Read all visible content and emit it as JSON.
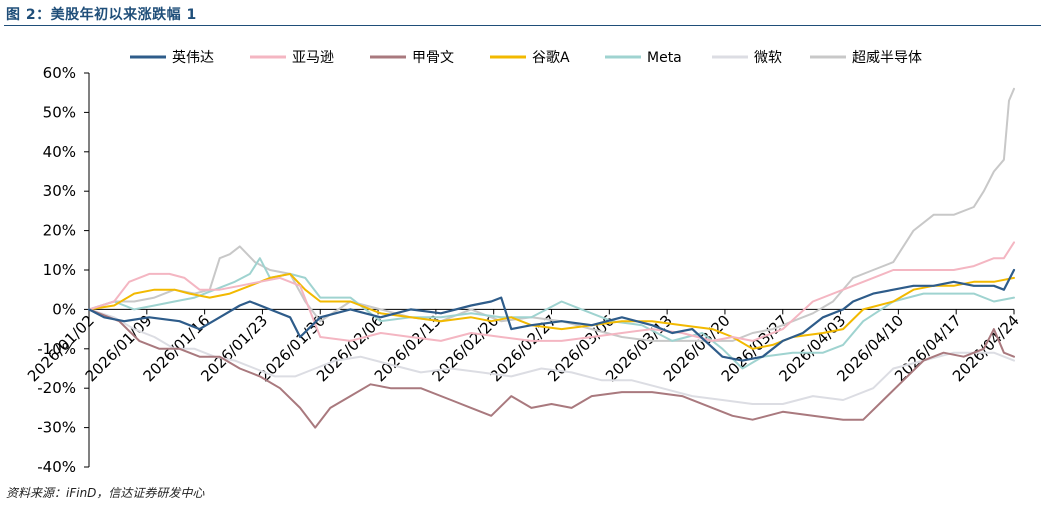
{
  "figure_title": "图 2：美股年初以来涨跌幅 1",
  "source_note": "资料来源：iFinD，信达证券研发中心",
  "chart_data": {
    "type": "line",
    "title": "",
    "xlabel": "",
    "ylabel": "",
    "ylim": [
      -0.4,
      0.6
    ],
    "y_ticks": [
      "-40%",
      "-30%",
      "-20%",
      "-10%",
      "0%",
      "10%",
      "20%",
      "30%",
      "40%",
      "50%",
      "60%"
    ],
    "x_ticks": [
      "2026/01/02",
      "2026/01/09",
      "2026/01/16",
      "2026/01/23",
      "2026/01/30",
      "2026/02/06",
      "2026/02/13",
      "2026/02/20",
      "2026/02/27",
      "2026/03/06",
      "2026/03/13",
      "2026/03/20",
      "2026/03/27",
      "2026/04/03",
      "2026/04/10",
      "2026/04/17",
      "2026/04/24"
    ],
    "grid": false,
    "legend_position": "top",
    "x_unit": "trading-day index starting at 2026/01/02",
    "series": [
      {
        "name": "英伟达",
        "color": "#2e5c8a",
        "points": [
          [
            0,
            0
          ],
          [
            3,
            -0.02
          ],
          [
            7,
            -0.03
          ],
          [
            12,
            -0.02
          ],
          [
            18,
            -0.03
          ],
          [
            22,
            -0.05
          ],
          [
            26,
            -0.02
          ],
          [
            30,
            0.01
          ],
          [
            32,
            0.02
          ],
          [
            36,
            0.0
          ],
          [
            40,
            -0.02
          ],
          [
            42,
            -0.07
          ],
          [
            46,
            -0.02
          ],
          [
            52,
            0.0
          ],
          [
            58,
            -0.02
          ],
          [
            64,
            0.0
          ],
          [
            70,
            -0.01
          ],
          [
            76,
            0.01
          ],
          [
            80,
            0.02
          ],
          [
            82,
            0.03
          ],
          [
            84,
            -0.05
          ],
          [
            88,
            -0.04
          ],
          [
            94,
            -0.03
          ],
          [
            100,
            -0.04
          ],
          [
            106,
            -0.02
          ],
          [
            112,
            -0.04
          ],
          [
            116,
            -0.06
          ],
          [
            120,
            -0.05
          ],
          [
            126,
            -0.12
          ],
          [
            130,
            -0.13
          ],
          [
            134,
            -0.12
          ],
          [
            138,
            -0.08
          ],
          [
            142,
            -0.06
          ],
          [
            146,
            -0.02
          ],
          [
            150,
            0.0
          ],
          [
            152,
            0.02
          ],
          [
            156,
            0.04
          ],
          [
            160,
            0.05
          ],
          [
            164,
            0.06
          ],
          [
            168,
            0.06
          ],
          [
            172,
            0.07
          ],
          [
            176,
            0.06
          ],
          [
            180,
            0.06
          ],
          [
            182,
            0.05
          ],
          [
            184,
            0.1
          ]
        ]
      },
      {
        "name": "亚马逊",
        "color": "#f4b6c2",
        "points": [
          [
            0,
            0
          ],
          [
            5,
            0.02
          ],
          [
            8,
            0.07
          ],
          [
            12,
            0.09
          ],
          [
            16,
            0.09
          ],
          [
            19,
            0.08
          ],
          [
            22,
            0.05
          ],
          [
            26,
            0.05
          ],
          [
            30,
            0.06
          ],
          [
            34,
            0.07
          ],
          [
            38,
            0.08
          ],
          [
            42,
            0.06
          ],
          [
            46,
            -0.07
          ],
          [
            52,
            -0.08
          ],
          [
            58,
            -0.06
          ],
          [
            64,
            -0.07
          ],
          [
            70,
            -0.08
          ],
          [
            76,
            -0.06
          ],
          [
            82,
            -0.07
          ],
          [
            88,
            -0.08
          ],
          [
            94,
            -0.08
          ],
          [
            100,
            -0.07
          ],
          [
            106,
            -0.06
          ],
          [
            112,
            -0.05
          ],
          [
            118,
            -0.06
          ],
          [
            124,
            -0.08
          ],
          [
            128,
            -0.07
          ],
          [
            132,
            -0.08
          ],
          [
            138,
            -0.05
          ],
          [
            144,
            0.02
          ],
          [
            150,
            0.05
          ],
          [
            156,
            0.08
          ],
          [
            160,
            0.1
          ],
          [
            166,
            0.1
          ],
          [
            172,
            0.1
          ],
          [
            176,
            0.11
          ],
          [
            180,
            0.13
          ],
          [
            182,
            0.13
          ],
          [
            184,
            0.17
          ]
        ]
      },
      {
        "name": "甲骨文",
        "color": "#a9797e",
        "points": [
          [
            0,
            0
          ],
          [
            6,
            -0.03
          ],
          [
            10,
            -0.08
          ],
          [
            14,
            -0.1
          ],
          [
            18,
            -0.1
          ],
          [
            22,
            -0.12
          ],
          [
            26,
            -0.12
          ],
          [
            30,
            -0.15
          ],
          [
            34,
            -0.17
          ],
          [
            38,
            -0.2
          ],
          [
            42,
            -0.25
          ],
          [
            45,
            -0.3
          ],
          [
            48,
            -0.25
          ],
          [
            52,
            -0.22
          ],
          [
            56,
            -0.19
          ],
          [
            60,
            -0.2
          ],
          [
            66,
            -0.2
          ],
          [
            72,
            -0.23
          ],
          [
            76,
            -0.25
          ],
          [
            80,
            -0.27
          ],
          [
            84,
            -0.22
          ],
          [
            88,
            -0.25
          ],
          [
            92,
            -0.24
          ],
          [
            96,
            -0.25
          ],
          [
            100,
            -0.22
          ],
          [
            106,
            -0.21
          ],
          [
            112,
            -0.21
          ],
          [
            118,
            -0.22
          ],
          [
            124,
            -0.25
          ],
          [
            128,
            -0.27
          ],
          [
            132,
            -0.28
          ],
          [
            138,
            -0.26
          ],
          [
            144,
            -0.27
          ],
          [
            150,
            -0.28
          ],
          [
            154,
            -0.28
          ],
          [
            158,
            -0.23
          ],
          [
            162,
            -0.18
          ],
          [
            166,
            -0.13
          ],
          [
            170,
            -0.11
          ],
          [
            174,
            -0.12
          ],
          [
            178,
            -0.1
          ],
          [
            180,
            -0.05
          ],
          [
            182,
            -0.11
          ],
          [
            184,
            -0.12
          ]
        ]
      },
      {
        "name": "谷歌A",
        "color": "#f2b900",
        "points": [
          [
            0,
            0
          ],
          [
            5,
            0.01
          ],
          [
            9,
            0.04
          ],
          [
            13,
            0.05
          ],
          [
            17,
            0.05
          ],
          [
            20,
            0.04
          ],
          [
            24,
            0.03
          ],
          [
            28,
            0.04
          ],
          [
            32,
            0.06
          ],
          [
            36,
            0.08
          ],
          [
            40,
            0.09
          ],
          [
            43,
            0.05
          ],
          [
            46,
            0.02
          ],
          [
            52,
            0.02
          ],
          [
            58,
            -0.01
          ],
          [
            64,
            -0.02
          ],
          [
            70,
            -0.03
          ],
          [
            76,
            -0.02
          ],
          [
            80,
            -0.03
          ],
          [
            84,
            -0.02
          ],
          [
            88,
            -0.04
          ],
          [
            94,
            -0.05
          ],
          [
            100,
            -0.04
          ],
          [
            106,
            -0.03
          ],
          [
            112,
            -0.03
          ],
          [
            118,
            -0.04
          ],
          [
            124,
            -0.05
          ],
          [
            128,
            -0.07
          ],
          [
            132,
            -0.1
          ],
          [
            136,
            -0.09
          ],
          [
            140,
            -0.07
          ],
          [
            146,
            -0.06
          ],
          [
            150,
            -0.05
          ],
          [
            154,
            0.0
          ],
          [
            160,
            0.02
          ],
          [
            164,
            0.05
          ],
          [
            168,
            0.06
          ],
          [
            172,
            0.06
          ],
          [
            176,
            0.07
          ],
          [
            180,
            0.07
          ],
          [
            184,
            0.08
          ]
        ]
      },
      {
        "name": "Meta",
        "color": "#9fd3d0",
        "points": [
          [
            0,
            0
          ],
          [
            5,
            0.02
          ],
          [
            9,
            0.0
          ],
          [
            13,
            0.01
          ],
          [
            17,
            0.02
          ],
          [
            21,
            0.03
          ],
          [
            25,
            0.05
          ],
          [
            29,
            0.07
          ],
          [
            32,
            0.09
          ],
          [
            34,
            0.13
          ],
          [
            36,
            0.08
          ],
          [
            40,
            0.09
          ],
          [
            43,
            0.08
          ],
          [
            46,
            0.03
          ],
          [
            52,
            0.03
          ],
          [
            58,
            -0.03
          ],
          [
            64,
            -0.02
          ],
          [
            70,
            -0.02
          ],
          [
            76,
            -0.01
          ],
          [
            82,
            -0.02
          ],
          [
            88,
            -0.02
          ],
          [
            94,
            0.02
          ],
          [
            98,
            0.0
          ],
          [
            104,
            -0.03
          ],
          [
            110,
            -0.04
          ],
          [
            116,
            -0.08
          ],
          [
            122,
            -0.06
          ],
          [
            126,
            -0.1
          ],
          [
            130,
            -0.15
          ],
          [
            134,
            -0.12
          ],
          [
            140,
            -0.11
          ],
          [
            146,
            -0.11
          ],
          [
            150,
            -0.09
          ],
          [
            154,
            -0.03
          ],
          [
            160,
            0.02
          ],
          [
            166,
            0.04
          ],
          [
            172,
            0.04
          ],
          [
            176,
            0.04
          ],
          [
            180,
            0.02
          ],
          [
            184,
            0.03
          ]
        ]
      },
      {
        "name": "微软",
        "color": "#dcdde3",
        "points": [
          [
            0,
            0
          ],
          [
            5,
            -0.02
          ],
          [
            9,
            -0.05
          ],
          [
            13,
            -0.07
          ],
          [
            17,
            -0.1
          ],
          [
            21,
            -0.1
          ],
          [
            25,
            -0.12
          ],
          [
            29,
            -0.13
          ],
          [
            33,
            -0.15
          ],
          [
            37,
            -0.17
          ],
          [
            41,
            -0.17
          ],
          [
            45,
            -0.15
          ],
          [
            49,
            -0.13
          ],
          [
            54,
            -0.12
          ],
          [
            60,
            -0.14
          ],
          [
            66,
            -0.16
          ],
          [
            72,
            -0.15
          ],
          [
            78,
            -0.16
          ],
          [
            84,
            -0.17
          ],
          [
            90,
            -0.15
          ],
          [
            96,
            -0.16
          ],
          [
            102,
            -0.18
          ],
          [
            108,
            -0.18
          ],
          [
            114,
            -0.2
          ],
          [
            120,
            -0.22
          ],
          [
            126,
            -0.23
          ],
          [
            132,
            -0.24
          ],
          [
            138,
            -0.24
          ],
          [
            144,
            -0.22
          ],
          [
            150,
            -0.23
          ],
          [
            156,
            -0.2
          ],
          [
            160,
            -0.15
          ],
          [
            166,
            -0.13
          ],
          [
            172,
            -0.11
          ],
          [
            176,
            -0.11
          ],
          [
            180,
            -0.11
          ],
          [
            184,
            -0.13
          ]
        ]
      },
      {
        "name": "超威半导体",
        "color": "#c8c8c8",
        "points": [
          [
            0,
            0
          ],
          [
            5,
            0.02
          ],
          [
            9,
            0.02
          ],
          [
            13,
            0.03
          ],
          [
            17,
            0.05
          ],
          [
            21,
            0.04
          ],
          [
            24,
            0.05
          ],
          [
            26,
            0.13
          ],
          [
            28,
            0.14
          ],
          [
            30,
            0.16
          ],
          [
            33,
            0.12
          ],
          [
            36,
            0.1
          ],
          [
            40,
            0.09
          ],
          [
            43,
            0.02
          ],
          [
            46,
            -0.03
          ],
          [
            52,
            0.02
          ],
          [
            58,
            0.0
          ],
          [
            64,
            -0.02
          ],
          [
            70,
            -0.03
          ],
          [
            76,
            0.0
          ],
          [
            82,
            -0.03
          ],
          [
            88,
            -0.02
          ],
          [
            94,
            -0.03
          ],
          [
            100,
            -0.05
          ],
          [
            106,
            -0.07
          ],
          [
            112,
            -0.08
          ],
          [
            118,
            -0.08
          ],
          [
            124,
            -0.08
          ],
          [
            128,
            -0.08
          ],
          [
            132,
            -0.06
          ],
          [
            136,
            -0.05
          ],
          [
            140,
            -0.03
          ],
          [
            144,
            -0.01
          ],
          [
            148,
            0.02
          ],
          [
            152,
            0.08
          ],
          [
            156,
            0.1
          ],
          [
            160,
            0.12
          ],
          [
            164,
            0.2
          ],
          [
            168,
            0.24
          ],
          [
            172,
            0.24
          ],
          [
            176,
            0.26
          ],
          [
            178,
            0.3
          ],
          [
            180,
            0.35
          ],
          [
            182,
            0.38
          ],
          [
            183,
            0.53
          ],
          [
            184,
            0.56
          ]
        ]
      }
    ]
  }
}
